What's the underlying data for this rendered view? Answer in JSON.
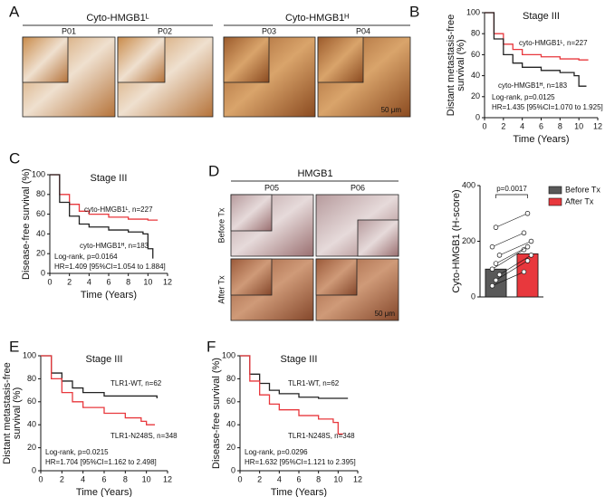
{
  "panel_labels": [
    "A",
    "B",
    "C",
    "D",
    "E",
    "F"
  ],
  "figure_a": {
    "groups": [
      {
        "title": "Cyto-HMGB1ᴸ",
        "images": [
          "P01",
          "P02"
        ]
      },
      {
        "title": "Cyto-HMGB1ᴴ",
        "images": [
          "P03",
          "P04"
        ]
      }
    ],
    "scale_bar": "50 μm"
  },
  "figure_d_images": {
    "title": "HMGB1",
    "columns": [
      "P05",
      "P06"
    ],
    "rows": [
      "Before Tx",
      "After Tx"
    ]
  },
  "chart_data": [
    {
      "type": "survival",
      "title": "Stage III",
      "ylabel": [
        "Distant metastasis-free",
        "survival (%)"
      ],
      "xlabel": "Time (Years)",
      "xlim": [
        0,
        12
      ],
      "ylim": [
        0,
        100
      ],
      "xticks": [
        0,
        2,
        4,
        6,
        8,
        10,
        12
      ],
      "yticks": [
        0,
        20,
        40,
        60,
        80,
        100
      ],
      "series": [
        {
          "name": "cyto-HMGB1ᴸ, n=227",
          "color": "#e8383d",
          "x": [
            0,
            1,
            2,
            3,
            4,
            6,
            8,
            10,
            11
          ],
          "values": [
            100,
            80,
            70,
            65,
            60,
            58,
            56,
            55,
            55
          ]
        },
        {
          "name": "cyto-HMGB1ᴴ, n=183",
          "color": "#222222",
          "x": [
            0,
            1,
            2,
            3,
            4,
            6,
            8,
            9.5,
            10,
            10.8
          ],
          "values": [
            100,
            75,
            60,
            52,
            48,
            45,
            43,
            40,
            30,
            30
          ]
        }
      ],
      "annotations": [
        "Log-rank, p=0.0125",
        "HR=1.435 [95%CI=1.070 to 1.925]"
      ]
    },
    {
      "type": "survival",
      "title": "Stage III",
      "ylabel": "Disease-free survival (%)",
      "xlabel": "Time (Years)",
      "xlim": [
        0,
        12
      ],
      "ylim": [
        0,
        100
      ],
      "xticks": [
        0,
        2,
        4,
        6,
        8,
        10,
        12
      ],
      "yticks": [
        0,
        20,
        40,
        60,
        80,
        100
      ],
      "series": [
        {
          "name": "cyto-HMGB1ᴸ, n=227",
          "color": "#e8383d",
          "x": [
            0,
            1,
            2,
            3,
            4,
            6,
            8,
            10,
            11
          ],
          "values": [
            100,
            80,
            70,
            63,
            60,
            57,
            55,
            54,
            54
          ]
        },
        {
          "name": "cyto-HMGB1ᴴ, n=183",
          "color": "#222222",
          "x": [
            0,
            1,
            2,
            3,
            4,
            6,
            8,
            9.5,
            10,
            10.5
          ],
          "values": [
            100,
            72,
            58,
            50,
            47,
            44,
            42,
            40,
            25,
            15
          ]
        }
      ],
      "annotations": [
        "Log-rank, p=0.0164",
        "HR=1.409 [95%CI=1.054 to 1.884]"
      ]
    },
    {
      "type": "bar",
      "ylabel": "Cyto-HMGB1 (H-score)",
      "ylim": [
        0,
        400
      ],
      "yticks": [
        0,
        200,
        400
      ],
      "legend": "upper right",
      "series": [
        {
          "name": "Before Tx",
          "color": "#595959",
          "values": [
            100
          ]
        },
        {
          "name": "After Tx",
          "color": "#e8383d",
          "values": [
            155
          ]
        }
      ],
      "points_before": [
        40,
        60,
        80,
        100,
        120,
        150,
        180,
        250
      ],
      "points_after": [
        90,
        130,
        150,
        170,
        180,
        200,
        230,
        300
      ],
      "annotations": [
        "p=0.0017"
      ]
    },
    {
      "type": "survival",
      "title": "Stage III",
      "ylabel": [
        "Distant metastasis-free",
        "survival (%)"
      ],
      "xlabel": "Time (Years)",
      "xlim": [
        0,
        12
      ],
      "ylim": [
        0,
        100
      ],
      "xticks": [
        0,
        2,
        4,
        6,
        8,
        10,
        12
      ],
      "yticks": [
        0,
        20,
        40,
        60,
        80,
        100
      ],
      "series": [
        {
          "name": "TLR1-WT, n=62",
          "color": "#222222",
          "x": [
            0,
            1,
            2,
            3,
            4,
            6,
            8,
            11
          ],
          "values": [
            100,
            85,
            78,
            72,
            68,
            65,
            65,
            63
          ]
        },
        {
          "name": "TLR1-N248S, n=348",
          "color": "#e8383d",
          "x": [
            0,
            1,
            2,
            3,
            4,
            6,
            8,
            9.5,
            10,
            10.8
          ],
          "values": [
            100,
            80,
            68,
            60,
            55,
            50,
            46,
            43,
            40,
            40
          ]
        }
      ],
      "annotations": [
        "Log-rank, p=0.0215",
        "HR=1.704 [95%CI=1.162 to 2.498]"
      ]
    },
    {
      "type": "survival",
      "title": "Stage III",
      "ylabel": "Disease-free survival (%)",
      "xlabel": "Time (Years)",
      "xlim": [
        0,
        12
      ],
      "ylim": [
        0,
        100
      ],
      "xticks": [
        0,
        2,
        4,
        6,
        8,
        10,
        12
      ],
      "yticks": [
        0,
        20,
        40,
        60,
        80,
        100
      ],
      "series": [
        {
          "name": "TLR1-WT, n=62",
          "color": "#222222",
          "x": [
            0,
            1,
            2,
            3,
            4,
            6,
            8,
            11
          ],
          "values": [
            100,
            84,
            76,
            70,
            67,
            64,
            63,
            63
          ]
        },
        {
          "name": "TLR1-N248S, n=348",
          "color": "#e8383d",
          "x": [
            0,
            1,
            2,
            3,
            4,
            6,
            8,
            9.5,
            10,
            10.5
          ],
          "values": [
            100,
            78,
            66,
            58,
            53,
            48,
            45,
            42,
            32,
            32
          ]
        }
      ],
      "annotations": [
        "Log-rank, p=0.0296",
        "HR=1.632 [95%CI=1.121 to 2.395]"
      ]
    }
  ]
}
